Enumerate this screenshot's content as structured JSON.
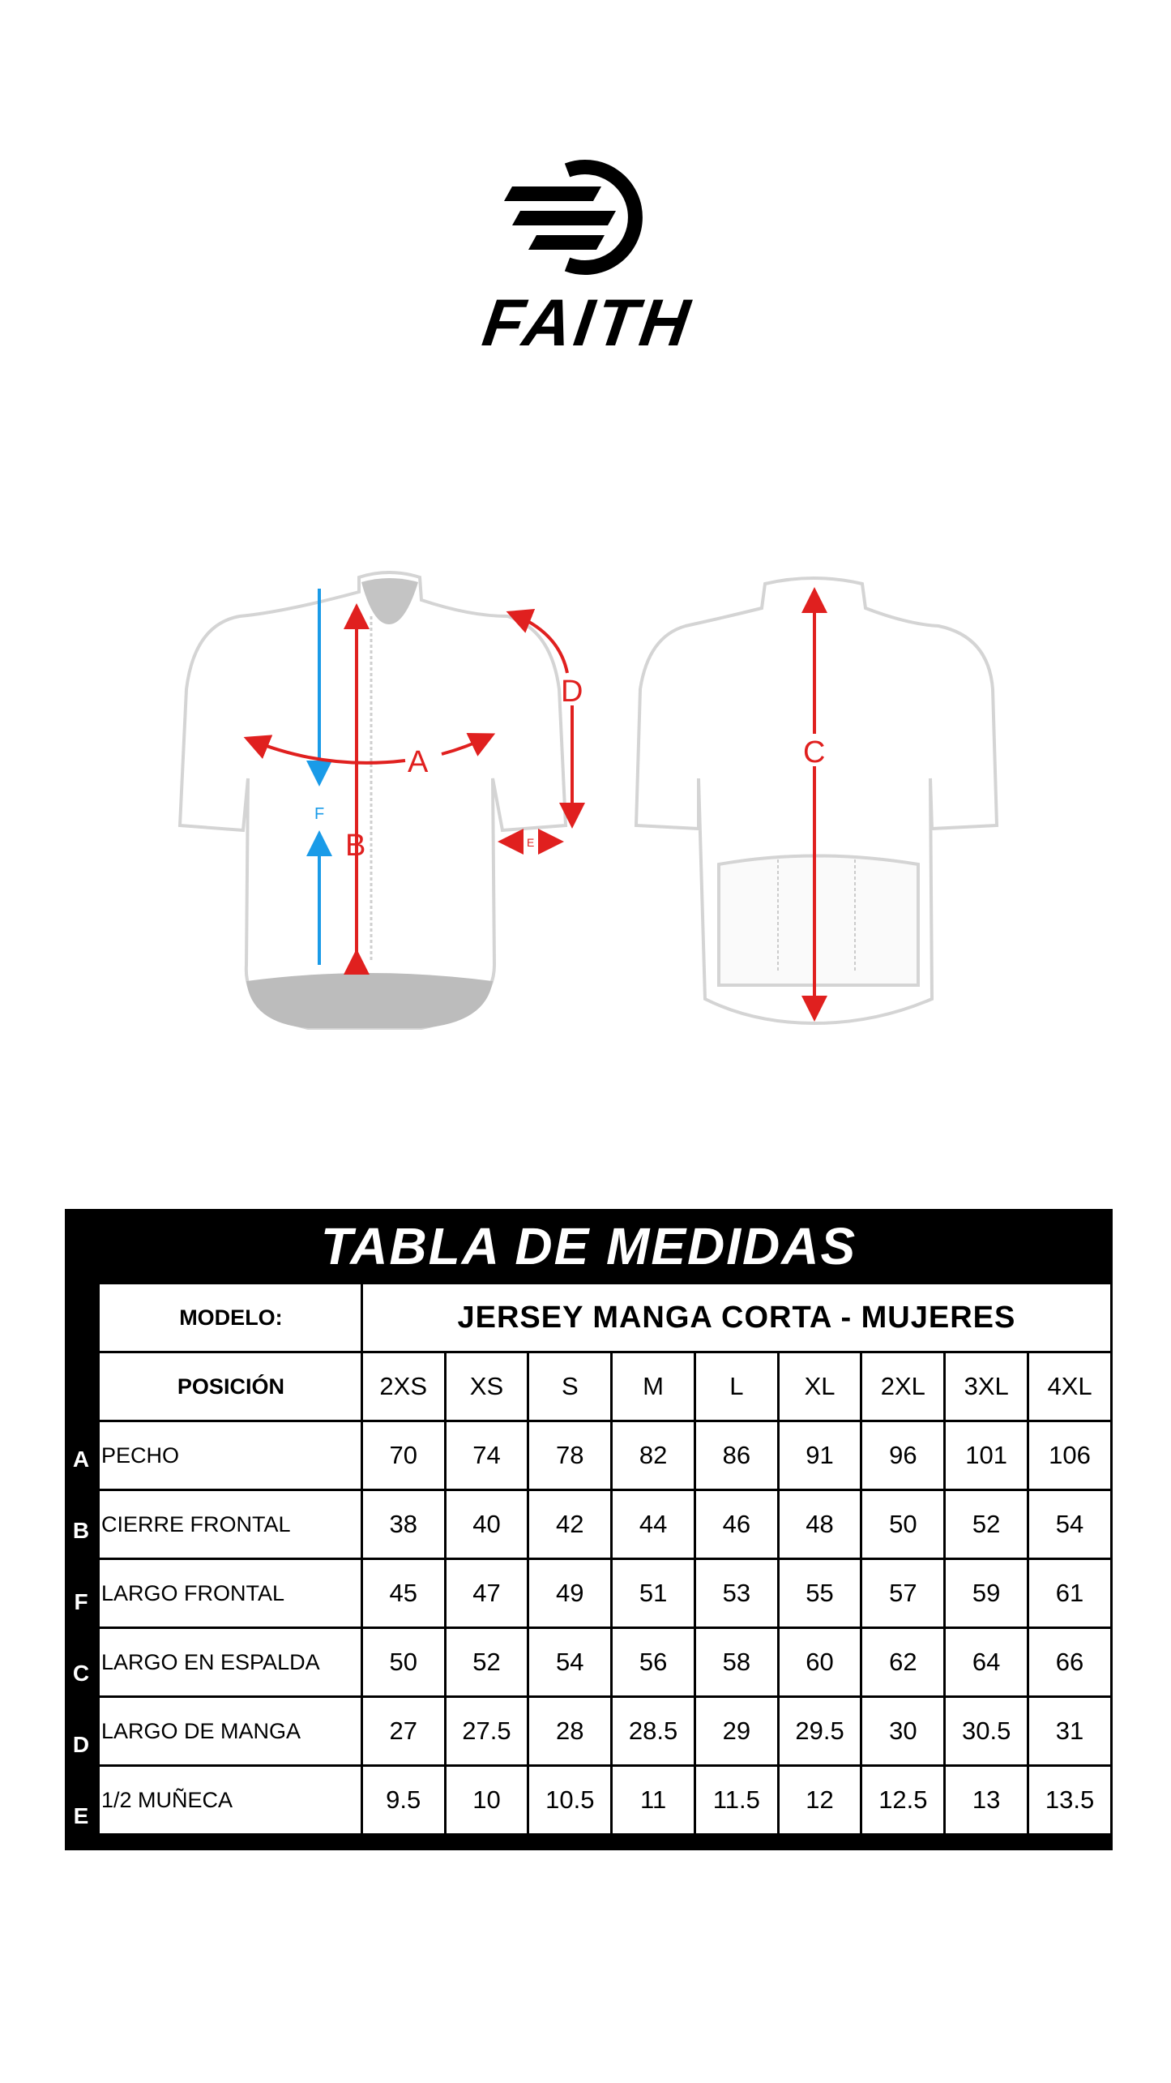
{
  "brand": {
    "name": "FAITH",
    "logo_icon": "faith-speed-logo"
  },
  "diagram": {
    "labels": {
      "a": "A",
      "b": "B",
      "c": "C",
      "d": "D",
      "e": "E",
      "f": "F"
    },
    "colors": {
      "red": "#e0201f",
      "blue": "#1a9be8",
      "outline": "#d4d4d4",
      "shade": "#bcbcbc"
    }
  },
  "table": {
    "title": "TABLA DE MEDIDAS",
    "model_label": "MODELO:",
    "model_value": "JERSEY MANGA CORTA - MUJERES",
    "position_label": "POSICIÓN",
    "sizes": [
      "2XS",
      "XS",
      "S",
      "M",
      "L",
      "XL",
      "2XL",
      "3XL",
      "4XL"
    ],
    "rows": [
      {
        "letter": "A",
        "label": "PECHO",
        "values": [
          "70",
          "74",
          "78",
          "82",
          "86",
          "91",
          "96",
          "101",
          "106"
        ]
      },
      {
        "letter": "B",
        "label": "CIERRE FRONTAL",
        "values": [
          "38",
          "40",
          "42",
          "44",
          "46",
          "48",
          "50",
          "52",
          "54"
        ]
      },
      {
        "letter": "F",
        "label": "LARGO FRONTAL",
        "values": [
          "45",
          "47",
          "49",
          "51",
          "53",
          "55",
          "57",
          "59",
          "61"
        ]
      },
      {
        "letter": "C",
        "label": "LARGO EN ESPALDA",
        "values": [
          "50",
          "52",
          "54",
          "56",
          "58",
          "60",
          "62",
          "64",
          "66"
        ]
      },
      {
        "letter": "D",
        "label": "LARGO DE MANGA",
        "values": [
          "27",
          "27.5",
          "28",
          "28.5",
          "29",
          "29.5",
          "30",
          "30.5",
          "31"
        ]
      },
      {
        "letter": "E",
        "label": "1/2 MUÑECA",
        "values": [
          "9.5",
          "10",
          "10.5",
          "11",
          "11.5",
          "12",
          "12.5",
          "13",
          "13.5"
        ]
      }
    ]
  }
}
